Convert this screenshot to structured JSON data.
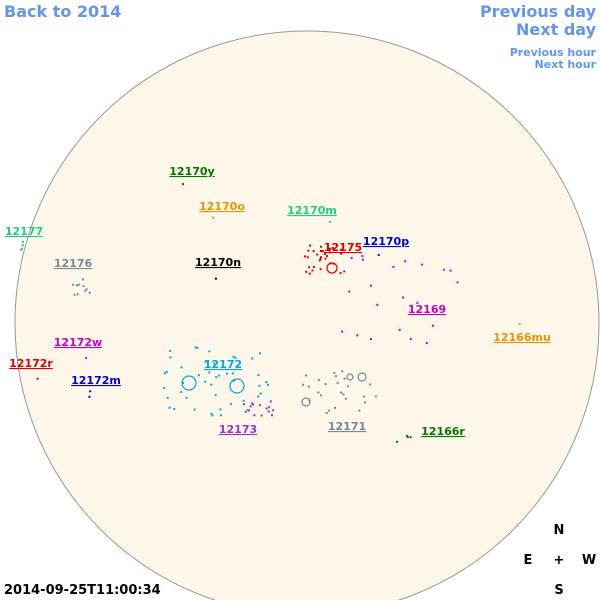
{
  "navigation": {
    "back": "Back to 2014",
    "previous_day": "Previous day",
    "next_day": "Next day",
    "previous_hour": "Previous hour",
    "next_hour": "Next hour"
  },
  "regions": [
    {
      "label": "12170y",
      "color": "#007700"
    },
    {
      "label": "12170o",
      "color": "#e69500"
    },
    {
      "label": "12170m",
      "color": "#22cc88"
    },
    {
      "label": "12177",
      "color": "#22cc88"
    },
    {
      "label": "12175",
      "color": "#dd0000"
    },
    {
      "label": "12170p",
      "color": "#0000cc"
    },
    {
      "label": "12176",
      "color": "#778899"
    },
    {
      "label": "12170n",
      "color": "#000000"
    },
    {
      "label": "12169",
      "color": "#cc00cc"
    },
    {
      "label": "12166mu",
      "color": "#e69500"
    },
    {
      "label": "12172w",
      "color": "#cc00cc"
    },
    {
      "label": "12172r",
      "color": "#dd0000"
    },
    {
      "label": "12172",
      "color": "#00aadd"
    },
    {
      "label": "12172m",
      "color": "#0000cc"
    },
    {
      "label": "12173",
      "color": "#9933cc"
    },
    {
      "label": "12171",
      "color": "#778899"
    },
    {
      "label": "12166r",
      "color": "#007700"
    }
  ],
  "compass": {
    "north": "N",
    "east": "E",
    "center": "+",
    "west": "W",
    "south": "S"
  },
  "timestamp": "2014-09-25T11:00:34"
}
